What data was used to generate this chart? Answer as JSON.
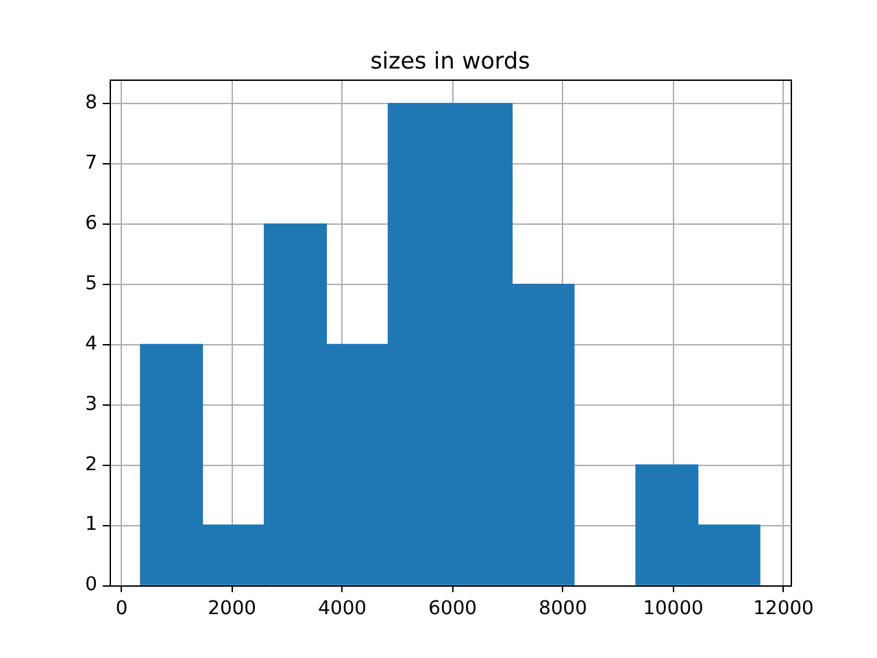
{
  "chart_data": {
    "type": "histogram",
    "title": "sizes in words",
    "bins": [
      340,
      1463,
      2586,
      3709,
      4832,
      5955,
      7078,
      8201,
      9324,
      10447,
      11570
    ],
    "values": [
      4,
      1,
      6,
      4,
      8,
      8,
      5,
      0,
      2,
      1
    ],
    "color": "#1f77b4",
    "xlim": [
      -220,
      12130
    ],
    "ylim": [
      0,
      8.4
    ],
    "xticks": [
      0,
      2000,
      4000,
      6000,
      8000,
      10000,
      12000
    ],
    "yticks": [
      0,
      1,
      2,
      3,
      4,
      5,
      6,
      7,
      8
    ],
    "grid": true
  }
}
